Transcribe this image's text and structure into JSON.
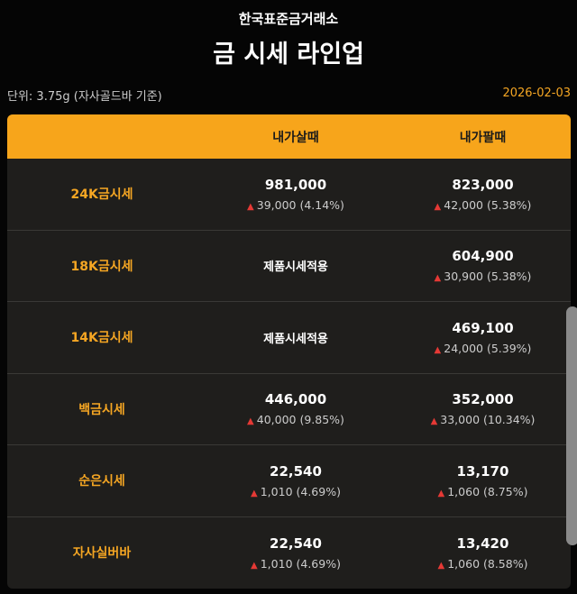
{
  "header": {
    "org": "한국표준금거래소",
    "title": "금 시세 라인업",
    "unit": "단위: 3.75g (자사골드바 기준)",
    "date": "2026-02-03"
  },
  "colors": {
    "accent": "#f7a51b",
    "up": "#e53935"
  },
  "table": {
    "columns": [
      "",
      "내가살때",
      "내가팔때"
    ],
    "rows": [
      {
        "label": "24K금시세",
        "buy": {
          "price": "981,000",
          "change": "39,000 (4.14%)"
        },
        "sell": {
          "price": "823,000",
          "change": "42,000 (5.38%)"
        }
      },
      {
        "label": "18K금시세",
        "buy": {
          "note": "제품시세적용"
        },
        "sell": {
          "price": "604,900",
          "change": "30,900 (5.38%)"
        }
      },
      {
        "label": "14K금시세",
        "buy": {
          "note": "제품시세적용"
        },
        "sell": {
          "price": "469,100",
          "change": "24,000 (5.39%)"
        }
      },
      {
        "label": "백금시세",
        "buy": {
          "price": "446,000",
          "change": "40,000 (9.85%)"
        },
        "sell": {
          "price": "352,000",
          "change": "33,000 (10.34%)"
        }
      },
      {
        "label": "순은시세",
        "buy": {
          "price": "22,540",
          "change": "1,010 (4.69%)"
        },
        "sell": {
          "price": "13,170",
          "change": "1,060 (8.75%)"
        }
      },
      {
        "label": "자사실버바",
        "buy": {
          "price": "22,540",
          "change": "1,010 (4.69%)"
        },
        "sell": {
          "price": "13,420",
          "change": "1,060 (8.58%)"
        }
      }
    ]
  }
}
